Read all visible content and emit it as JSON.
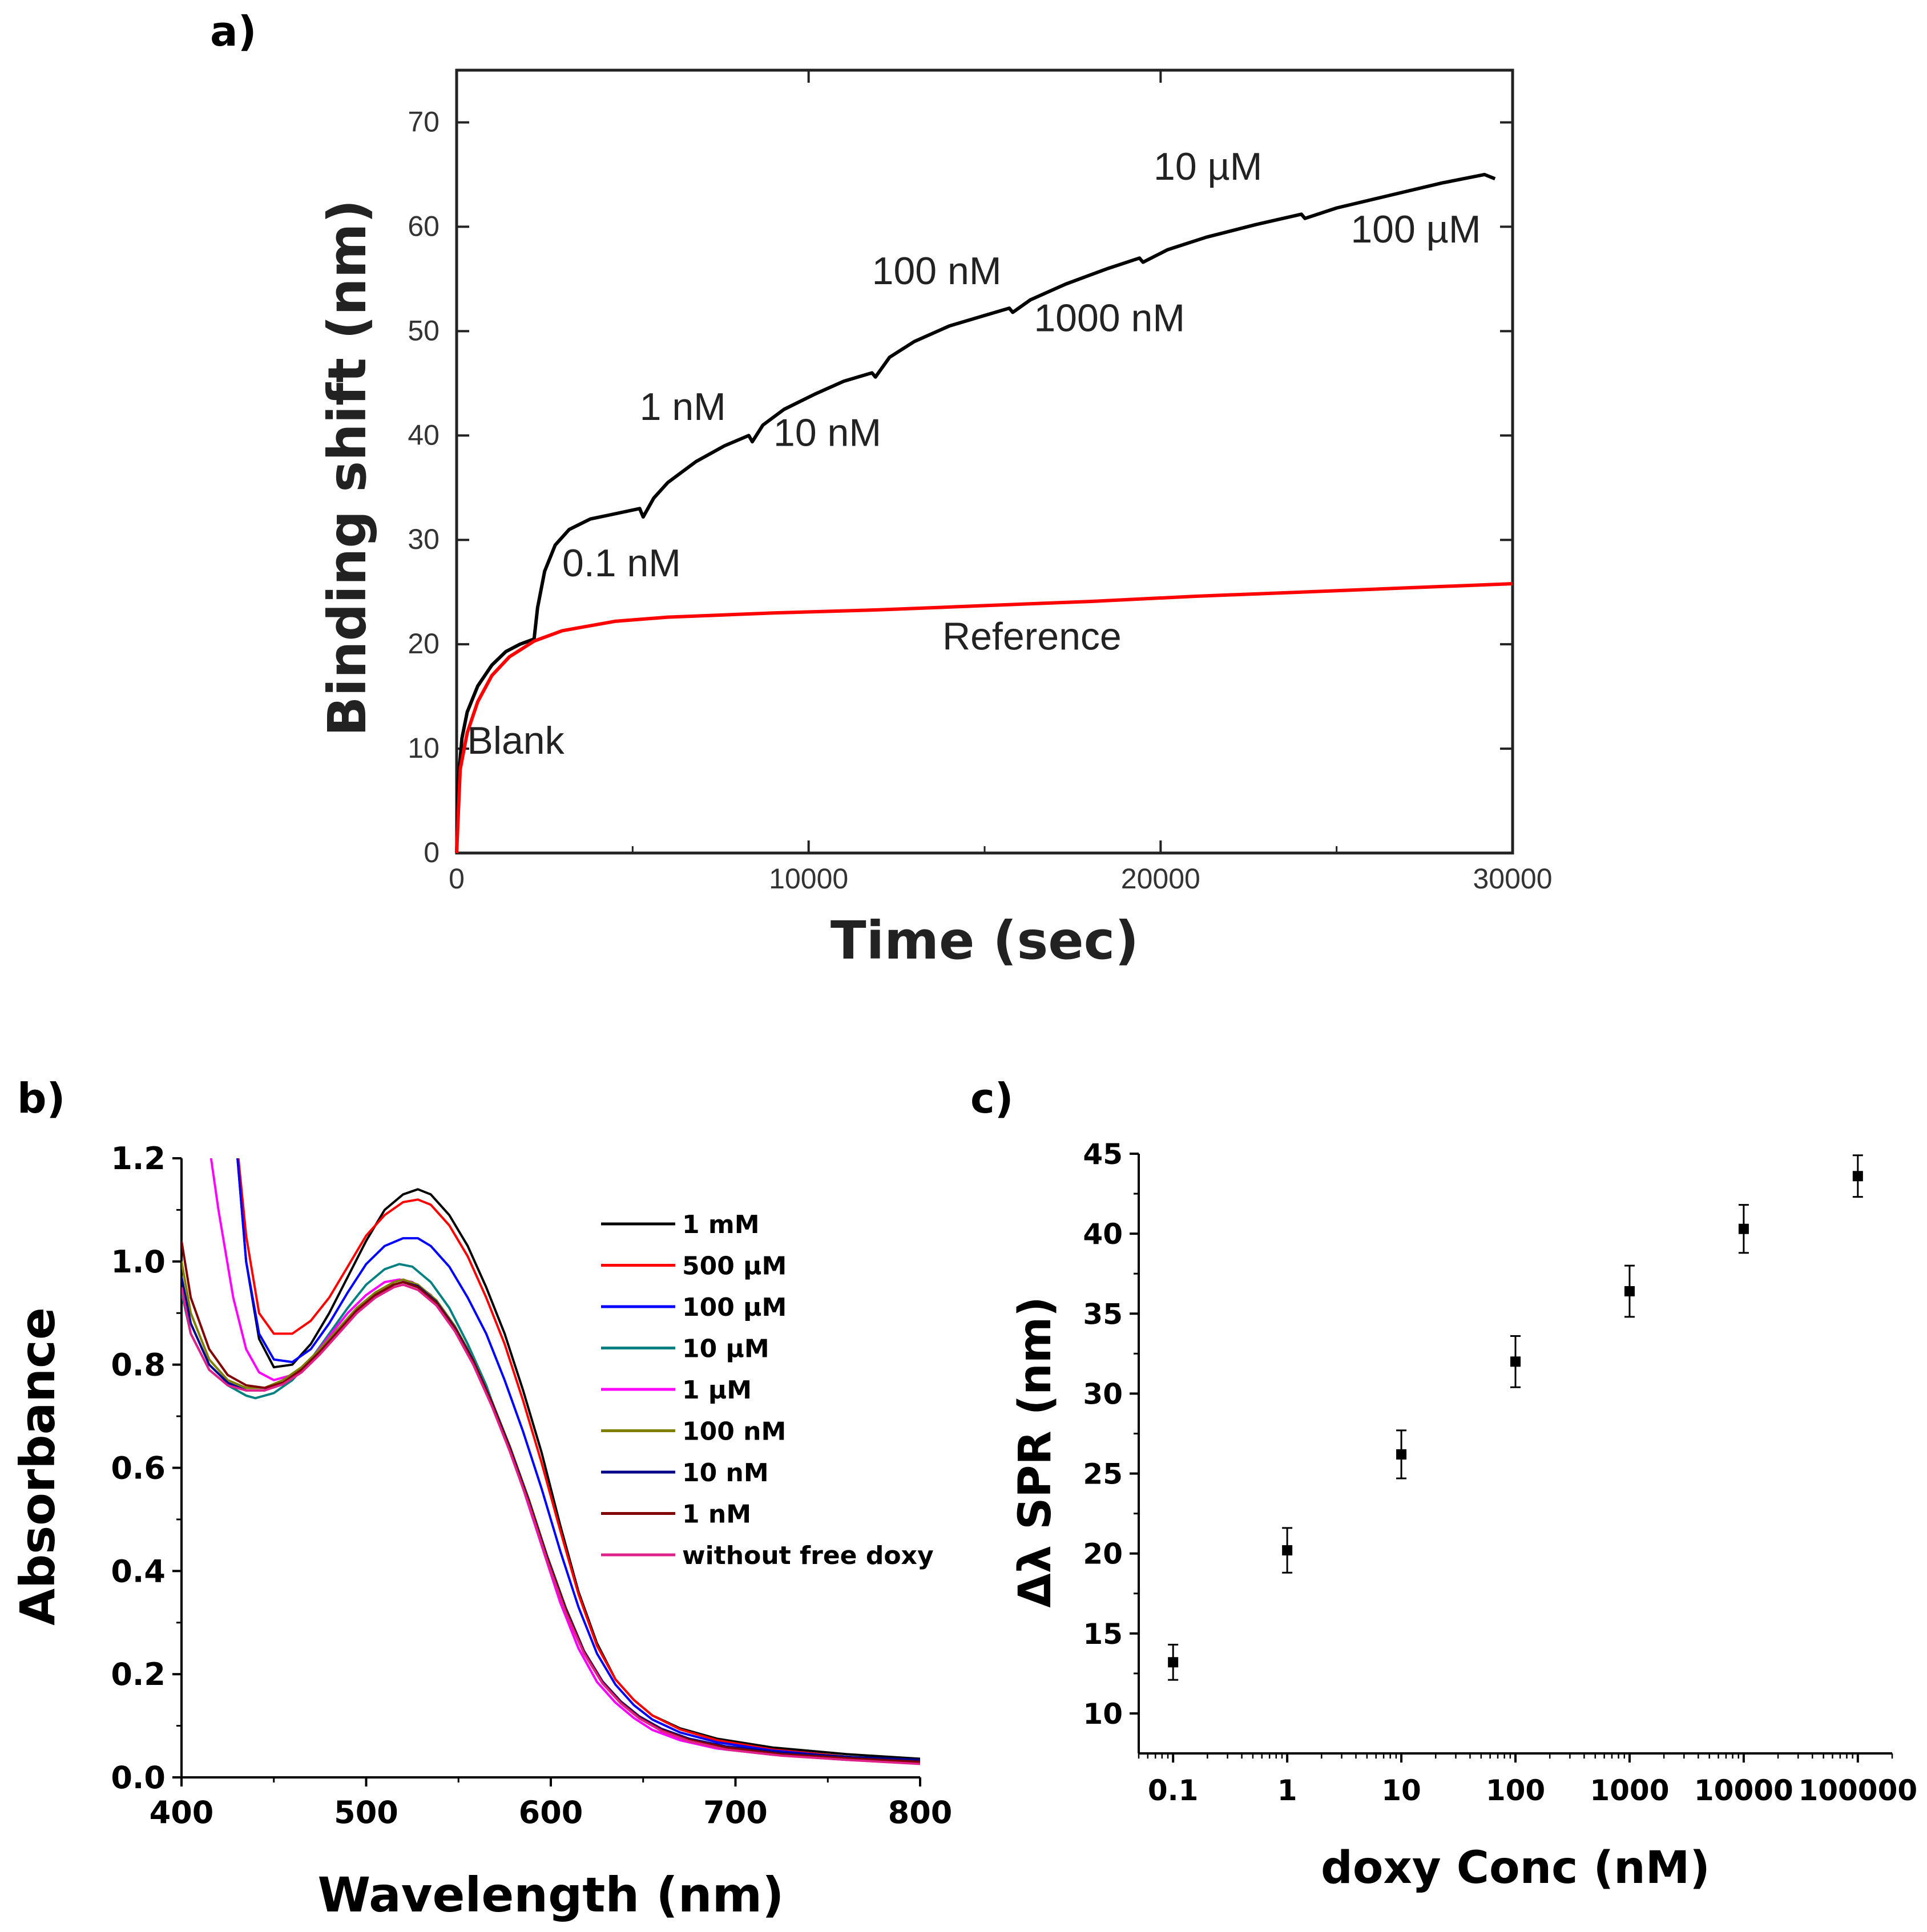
{
  "panels": {
    "a": "a)",
    "b": "b)",
    "c": "c)"
  },
  "chart_data": [
    {
      "id": "a",
      "type": "line",
      "title": "",
      "xlabel": "Time (sec)",
      "ylabel": "Binding shift (nm)",
      "xlim": [
        0,
        30000
      ],
      "ylim": [
        0,
        75
      ],
      "xticks": [
        0,
        10000,
        20000,
        30000
      ],
      "yticks": [
        0,
        10,
        20,
        30,
        40,
        50,
        60,
        70
      ],
      "grid": false,
      "series": [
        {
          "color": "#000000",
          "x": [
            0,
            50,
            150,
            300,
            600,
            1000,
            1400,
            1800,
            2200,
            2300,
            2500,
            2800,
            3200,
            3800,
            4500,
            5200,
            5300,
            5600,
            6000,
            6800,
            7600,
            8300,
            8400,
            8700,
            9300,
            10200,
            11000,
            11800,
            11900,
            12300,
            13000,
            14000,
            15000,
            15700,
            15800,
            16300,
            17300,
            18500,
            19400,
            19500,
            20200,
            21300,
            22700,
            24000,
            24100,
            25000,
            26500,
            28000,
            29200,
            29500
          ],
          "y": [
            0,
            7,
            11,
            13.5,
            16,
            18,
            19.3,
            20,
            20.5,
            23.5,
            27,
            29.5,
            31,
            32,
            32.5,
            33,
            32.2,
            34,
            35.5,
            37.5,
            39,
            40,
            39.4,
            41,
            42.5,
            44,
            45.2,
            46,
            45.6,
            47.5,
            49,
            50.5,
            51.5,
            52.2,
            51.8,
            53,
            54.5,
            56,
            57,
            56.6,
            57.8,
            59,
            60.2,
            61.2,
            60.8,
            61.8,
            63,
            64.2,
            65,
            64.6
          ]
        },
        {
          "name": "Reference",
          "color": "#ff0000",
          "x": [
            0,
            100,
            300,
            600,
            1000,
            1500,
            2200,
            3000,
            4500,
            6000,
            9000,
            12000,
            15000,
            18000,
            21000,
            24000,
            27000,
            30000
          ],
          "y": [
            0,
            8,
            11.5,
            14.5,
            17,
            18.8,
            20.3,
            21.3,
            22.2,
            22.6,
            23,
            23.3,
            23.7,
            24.1,
            24.6,
            25,
            25.4,
            25.8
          ]
        }
      ],
      "annotations": [
        {
          "text": "Blank",
          "x": 300,
          "y": 9.5
        },
        {
          "text": "0.1 nM",
          "x": 3000,
          "y": 26.5
        },
        {
          "text": "1 nM",
          "x": 5200,
          "y": 41.5
        },
        {
          "text": "10 nM",
          "x": 9000,
          "y": 39
        },
        {
          "text": "100 nM",
          "x": 11800,
          "y": 54.5
        },
        {
          "text": "1000 nM",
          "x": 16400,
          "y": 50
        },
        {
          "text": "10 µM",
          "x": 19800,
          "y": 64.5
        },
        {
          "text": "100 µM",
          "x": 25400,
          "y": 58.5
        },
        {
          "text": "Reference",
          "x": 13800,
          "y": 19.5
        }
      ]
    },
    {
      "id": "b",
      "type": "line",
      "title": "",
      "xlabel": "Wavelength (nm)",
      "ylabel": "Absorbance",
      "xlim": [
        400,
        800
      ],
      "ylim": [
        0.0,
        1.2
      ],
      "xticks": [
        400,
        500,
        600,
        700,
        800
      ],
      "yticks": [
        "0.0",
        "0.2",
        "0.4",
        "0.6",
        "0.8",
        "1.0",
        "1.2"
      ],
      "grid": false,
      "legend": "right",
      "series": [
        {
          "name": "1 mM",
          "color": "#000000",
          "x": [
            400,
            420,
            428,
            435,
            442,
            450,
            460,
            470,
            480,
            490,
            500,
            510,
            520,
            528,
            535,
            545,
            555,
            565,
            575,
            585,
            595,
            605,
            615,
            625,
            635,
            645,
            655,
            670,
            690,
            720,
            760,
            800
          ],
          "y": [
            1.3,
            1.3,
            1.3,
            1.0,
            0.85,
            0.795,
            0.8,
            0.84,
            0.9,
            0.97,
            1.04,
            1.1,
            1.13,
            1.14,
            1.13,
            1.09,
            1.03,
            0.95,
            0.86,
            0.75,
            0.63,
            0.49,
            0.36,
            0.26,
            0.19,
            0.15,
            0.12,
            0.095,
            0.075,
            0.058,
            0.045,
            0.036
          ]
        },
        {
          "name": "500 µM",
          "color": "#ff0000",
          "x": [
            400,
            420,
            428,
            435,
            442,
            450,
            460,
            470,
            480,
            490,
            500,
            510,
            520,
            528,
            535,
            545,
            555,
            565,
            575,
            585,
            595,
            605,
            615,
            625,
            635,
            645,
            655,
            670,
            690,
            720,
            760,
            800
          ],
          "y": [
            1.3,
            1.3,
            1.3,
            1.05,
            0.9,
            0.86,
            0.86,
            0.885,
            0.93,
            0.99,
            1.05,
            1.09,
            1.115,
            1.12,
            1.11,
            1.07,
            1.01,
            0.93,
            0.84,
            0.73,
            0.61,
            0.48,
            0.355,
            0.255,
            0.19,
            0.15,
            0.12,
            0.093,
            0.072,
            0.054,
            0.04,
            0.03
          ]
        },
        {
          "name": "100 µM",
          "color": "#0000ff",
          "x": [
            400,
            420,
            428,
            435,
            442,
            450,
            460,
            470,
            480,
            490,
            500,
            510,
            520,
            528,
            535,
            545,
            555,
            565,
            575,
            585,
            595,
            605,
            615,
            625,
            635,
            645,
            655,
            670,
            690,
            720,
            760,
            800
          ],
          "y": [
            1.3,
            1.3,
            1.3,
            1.0,
            0.86,
            0.81,
            0.805,
            0.83,
            0.88,
            0.94,
            0.995,
            1.03,
            1.045,
            1.045,
            1.03,
            0.99,
            0.93,
            0.86,
            0.77,
            0.67,
            0.56,
            0.44,
            0.33,
            0.24,
            0.18,
            0.14,
            0.112,
            0.087,
            0.068,
            0.052,
            0.039,
            0.03
          ]
        },
        {
          "name": "10 µM",
          "color": "#008080",
          "x": [
            400,
            405,
            415,
            425,
            435,
            440,
            450,
            460,
            470,
            480,
            490,
            500,
            510,
            518,
            525,
            535,
            545,
            555,
            565,
            575,
            585,
            595,
            605,
            615,
            625,
            635,
            645,
            655,
            670,
            690,
            720,
            760,
            800
          ],
          "y": [
            0.94,
            0.86,
            0.79,
            0.76,
            0.74,
            0.735,
            0.745,
            0.77,
            0.81,
            0.86,
            0.91,
            0.955,
            0.985,
            0.995,
            0.99,
            0.96,
            0.91,
            0.84,
            0.76,
            0.66,
            0.56,
            0.45,
            0.34,
            0.25,
            0.185,
            0.145,
            0.115,
            0.092,
            0.072,
            0.056,
            0.044,
            0.034,
            0.027
          ]
        },
        {
          "name": "1 µM",
          "color": "#ff00ff",
          "x": [
            400,
            412,
            420,
            428,
            435,
            442,
            450,
            460,
            470,
            480,
            490,
            500,
            510,
            518,
            525,
            535,
            545,
            555,
            565,
            575,
            585,
            595,
            605,
            615,
            625,
            635,
            645,
            655,
            670,
            690,
            720,
            760,
            800
          ],
          "y": [
            1.3,
            1.3,
            1.1,
            0.93,
            0.83,
            0.785,
            0.77,
            0.78,
            0.81,
            0.855,
            0.9,
            0.935,
            0.96,
            0.965,
            0.96,
            0.935,
            0.89,
            0.83,
            0.75,
            0.66,
            0.56,
            0.45,
            0.34,
            0.25,
            0.185,
            0.145,
            0.115,
            0.092,
            0.072,
            0.056,
            0.044,
            0.034,
            0.027
          ]
        },
        {
          "name": "100 nM",
          "color": "#808000",
          "x": [
            400,
            405,
            415,
            425,
            435,
            445,
            455,
            465,
            475,
            485,
            495,
            505,
            515,
            520,
            528,
            538,
            548,
            558,
            568,
            578,
            588,
            598,
            608,
            618,
            628,
            638,
            648,
            660,
            675,
            695,
            725,
            765,
            800
          ],
          "y": [
            1.0,
            0.9,
            0.81,
            0.77,
            0.755,
            0.755,
            0.77,
            0.795,
            0.83,
            0.87,
            0.91,
            0.94,
            0.96,
            0.965,
            0.955,
            0.925,
            0.875,
            0.81,
            0.73,
            0.64,
            0.54,
            0.43,
            0.33,
            0.245,
            0.185,
            0.145,
            0.115,
            0.09,
            0.07,
            0.055,
            0.043,
            0.034,
            0.028
          ]
        },
        {
          "name": "10 nM",
          "color": "#00008b",
          "x": [
            400,
            405,
            415,
            425,
            435,
            445,
            455,
            465,
            475,
            485,
            495,
            505,
            515,
            520,
            528,
            538,
            548,
            558,
            568,
            578,
            588,
            598,
            608,
            618,
            628,
            638,
            648,
            660,
            675,
            695,
            725,
            765,
            800
          ],
          "y": [
            0.97,
            0.88,
            0.8,
            0.765,
            0.75,
            0.75,
            0.765,
            0.79,
            0.825,
            0.865,
            0.905,
            0.935,
            0.955,
            0.96,
            0.952,
            0.922,
            0.872,
            0.808,
            0.728,
            0.638,
            0.538,
            0.428,
            0.328,
            0.245,
            0.186,
            0.147,
            0.118,
            0.094,
            0.075,
            0.06,
            0.048,
            0.039,
            0.034
          ]
        },
        {
          "name": "1 nM",
          "color": "#800000",
          "x": [
            400,
            405,
            415,
            425,
            435,
            445,
            455,
            465,
            475,
            485,
            495,
            505,
            515,
            520,
            528,
            538,
            548,
            558,
            568,
            578,
            588,
            598,
            608,
            618,
            628,
            638,
            648,
            660,
            675,
            695,
            725,
            765,
            800
          ],
          "y": [
            1.04,
            0.93,
            0.83,
            0.78,
            0.76,
            0.755,
            0.765,
            0.79,
            0.825,
            0.865,
            0.905,
            0.935,
            0.955,
            0.96,
            0.95,
            0.92,
            0.87,
            0.805,
            0.725,
            0.635,
            0.535,
            0.425,
            0.325,
            0.243,
            0.184,
            0.145,
            0.116,
            0.092,
            0.073,
            0.058,
            0.045,
            0.036,
            0.03
          ]
        },
        {
          "name": "without free doxy",
          "color": "#e0218a",
          "x": [
            400,
            405,
            415,
            425,
            435,
            445,
            455,
            465,
            475,
            485,
            495,
            505,
            515,
            520,
            528,
            538,
            548,
            558,
            568,
            578,
            588,
            598,
            608,
            618,
            628,
            638,
            648,
            660,
            675,
            695,
            725,
            765,
            800
          ],
          "y": [
            0.95,
            0.86,
            0.79,
            0.76,
            0.75,
            0.75,
            0.762,
            0.785,
            0.82,
            0.86,
            0.9,
            0.93,
            0.95,
            0.955,
            0.945,
            0.915,
            0.865,
            0.8,
            0.72,
            0.63,
            0.53,
            0.42,
            0.32,
            0.24,
            0.182,
            0.143,
            0.114,
            0.09,
            0.07,
            0.054,
            0.042,
            0.033,
            0.026
          ]
        }
      ]
    },
    {
      "id": "c",
      "type": "scatter",
      "title": "",
      "xlabel": "doxy Conc (nM)",
      "ylabel": "Δλ SPR (nm)",
      "xscale": "log",
      "xlim": [
        0.05,
        200000
      ],
      "ylim": [
        7.5,
        45
      ],
      "xticks": [
        "0.1",
        "1",
        "10",
        "100",
        "1000",
        "10000",
        "100000"
      ],
      "yticks": [
        10,
        15,
        20,
        25,
        30,
        35,
        40,
        45
      ],
      "grid": false,
      "points": [
        {
          "x": 0.1,
          "y": 13.2,
          "err": 1.1
        },
        {
          "x": 1,
          "y": 20.2,
          "err": 1.4
        },
        {
          "x": 10,
          "y": 26.2,
          "err": 1.5
        },
        {
          "x": 100,
          "y": 32.0,
          "err": 1.6
        },
        {
          "x": 1000,
          "y": 36.4,
          "err": 1.6
        },
        {
          "x": 10000,
          "y": 40.3,
          "err": 1.5
        },
        {
          "x": 100000,
          "y": 43.6,
          "err": 1.3
        }
      ]
    }
  ]
}
